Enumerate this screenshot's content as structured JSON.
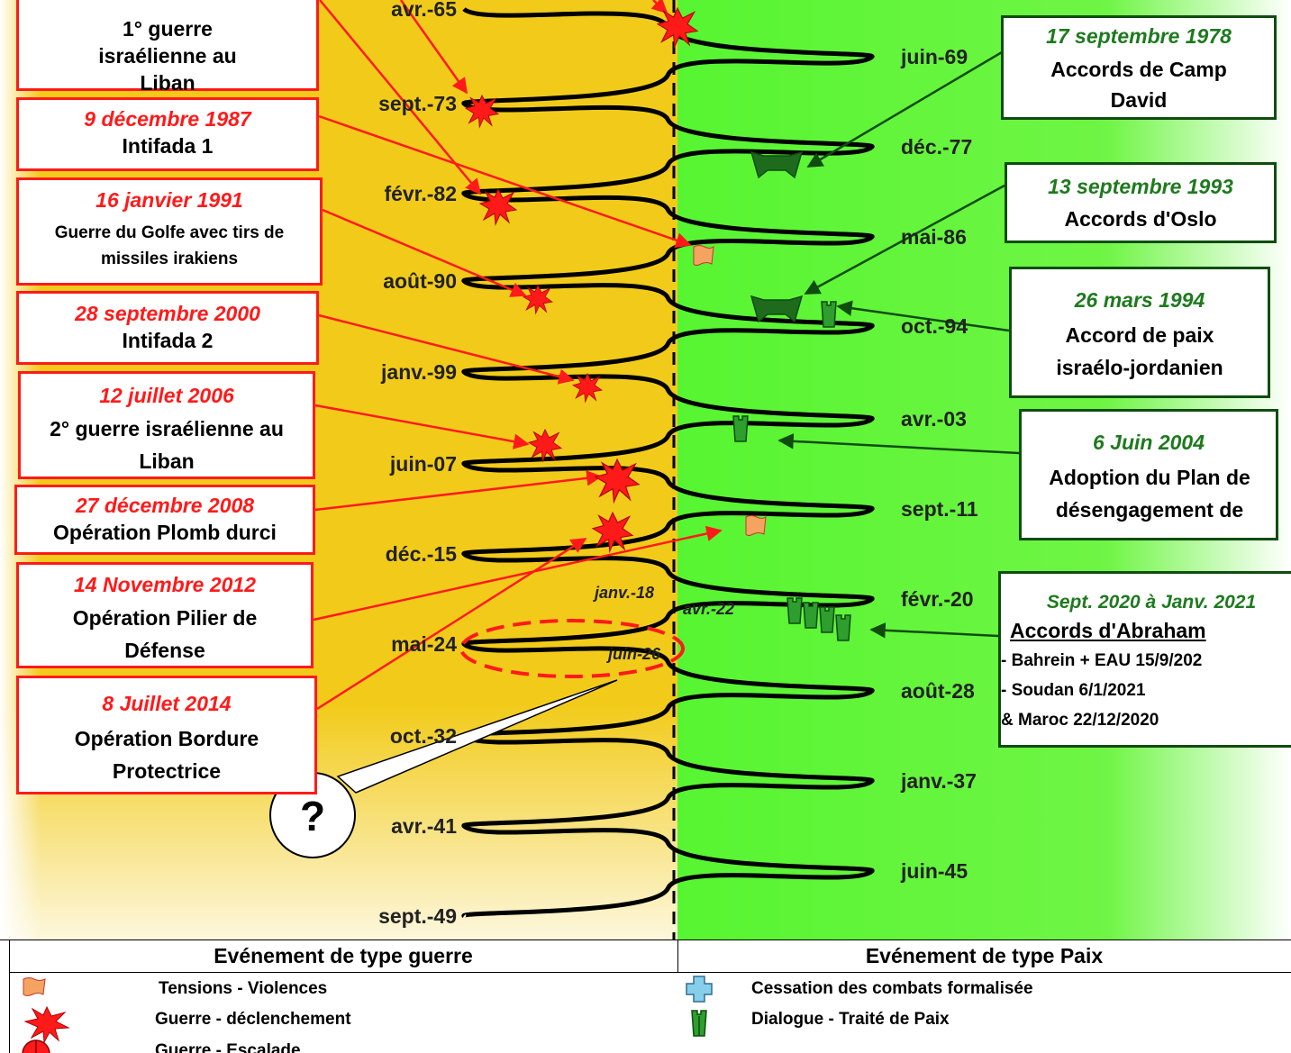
{
  "spiral_dates": [
    {
      "label": "avr.-65",
      "side": "left"
    },
    {
      "label": "juin-69",
      "side": "right"
    },
    {
      "label": "sept.-73",
      "side": "left"
    },
    {
      "label": "déc.-77",
      "side": "right"
    },
    {
      "label": "févr.-82",
      "side": "left"
    },
    {
      "label": "mai-86",
      "side": "right"
    },
    {
      "label": "août-90",
      "side": "left"
    },
    {
      "label": "oct.-94",
      "side": "right"
    },
    {
      "label": "janv.-99",
      "side": "left"
    },
    {
      "label": "avr.-03",
      "side": "right"
    },
    {
      "label": "juin-07",
      "side": "left"
    },
    {
      "label": "sept.-11",
      "side": "right"
    },
    {
      "label": "déc.-15",
      "side": "left"
    },
    {
      "label": "févr.-20",
      "side": "right"
    },
    {
      "label": "mai-24",
      "side": "left"
    },
    {
      "label": "août-28",
      "side": "right"
    },
    {
      "label": "oct.-32",
      "side": "left"
    },
    {
      "label": "janv.-37",
      "side": "right"
    },
    {
      "label": "avr.-41",
      "side": "left"
    },
    {
      "label": "juin-45",
      "side": "right"
    },
    {
      "label": "sept.-49",
      "side": "left"
    }
  ],
  "inline_dates": {
    "janv18": "janv.-18",
    "avr22": "avr.-22",
    "juin26": "juin-26"
  },
  "question_mark": "?",
  "war_events": [
    {
      "date": "",
      "text": "1° guerre israélienne au Liban"
    },
    {
      "date": "9 décembre 1987",
      "text": "Intifada 1"
    },
    {
      "date": "16 janvier 1991",
      "text": "Guerre du Golfe avec tirs de missiles irakiens"
    },
    {
      "date": "28 septembre 2000",
      "text": "Intifada 2"
    },
    {
      "date": "12 juillet 2006",
      "text": "2° guerre israélienne au Liban"
    },
    {
      "date": "27 décembre 2008",
      "text": "Opération Plomb durci"
    },
    {
      "date": "14 Novembre 2012",
      "text": "Opération Pilier de Défense"
    },
    {
      "date": "8 Juillet 2014",
      "text": "Opération Bordure Protectrice"
    }
  ],
  "peace_events": [
    {
      "date": "17 septembre 1978",
      "text": "Accords de Camp David"
    },
    {
      "date": "13 septembre 1993",
      "text": "Accords d'Oslo"
    },
    {
      "date": "26 mars 1994",
      "text": "Accord de paix israélo-jordanien"
    },
    {
      "date": "6 Juin 2004",
      "text": "Adoption du Plan de désengagement de"
    },
    {
      "date": "Sept. 2020  à Janv. 2021",
      "text": "Accords d'Abraham",
      "lines": [
        "- Bahrein + EAU 15/9/202",
        "- Soudan 6/1/2021",
        "& Maroc 22/12/2020"
      ]
    }
  ],
  "legend": {
    "war_title": "Evénement de  type guerre",
    "peace_title": "Evénement de type Paix",
    "war_items": [
      "Tensions - Violences",
      "Guerre - déclenchement",
      "Guerre - Escalade"
    ],
    "peace_items": [
      "Cessation  des combats formalisée",
      "Dialogue - Traité de Paix"
    ],
    "icons": [
      "flag-icon",
      "explosion-icon",
      "target-icon",
      "cross-icon",
      "tower-icon"
    ]
  },
  "colors": {
    "war_zone": "#f2cb1a",
    "peace_zone": "#5ff53a",
    "war": "#ff1a1a",
    "peace": "#0f4d0f",
    "tension": "#f4a460"
  }
}
